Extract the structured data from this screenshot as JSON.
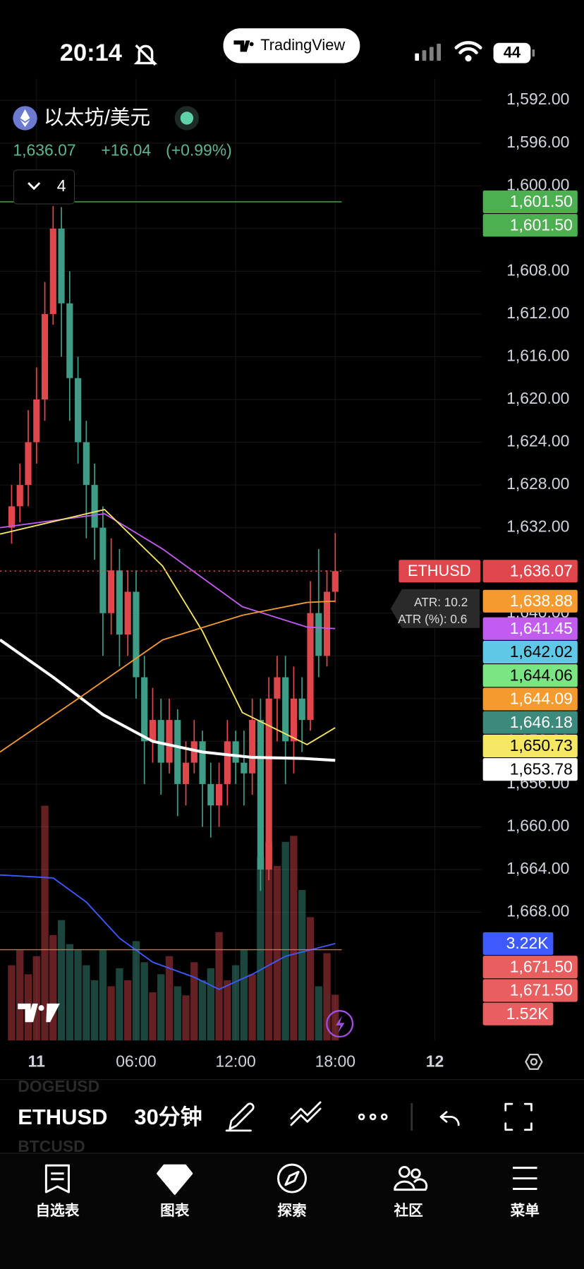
{
  "status": {
    "time": "20:14",
    "battery": "44",
    "app": "TradingView"
  },
  "header": {
    "symbol": "以太坊/美元",
    "price": "1,636.07",
    "change": "+16.04",
    "change_pct": "(+0.99%)",
    "indicators": "4"
  },
  "chart_data": {
    "type": "candlestick",
    "x": [
      -1.5,
      -1,
      -0.5,
      0,
      0.5,
      1,
      1.5,
      2,
      2.5,
      3,
      3.5,
      4,
      4.5,
      5,
      5.5,
      6,
      6.5,
      7,
      7.5,
      8,
      8.5,
      9,
      9.5,
      10,
      10.5,
      11,
      11.5,
      12,
      12.5,
      13,
      13.5,
      14,
      14.5,
      15,
      15.5,
      16,
      16.5,
      17,
      17.5,
      18
    ],
    "open": [
      1632,
      1630,
      1628,
      1624,
      1620,
      1612,
      1604,
      1611,
      1618,
      1624,
      1628,
      1632,
      1640,
      1636,
      1642,
      1638,
      1646,
      1652,
      1650,
      1654,
      1650,
      1656,
      1654,
      1652,
      1656,
      1658,
      1656,
      1652,
      1654,
      1655,
      1650,
      1664,
      1648,
      1646,
      1652,
      1648,
      1650,
      1640,
      1644,
      1638
    ],
    "high": [
      1633.5,
      1631.5,
      1630,
      1626,
      1622,
      1613,
      1616,
      1622,
      1626,
      1633,
      1635,
      1644,
      1642,
      1645,
      1644,
      1648,
      1656,
      1654,
      1657,
      1655,
      1659,
      1658,
      1655,
      1660,
      1661,
      1660,
      1658,
      1656,
      1658,
      1657,
      1666,
      1665,
      1652,
      1656,
      1655,
      1653,
      1651,
      1646,
      1645,
      1639
    ],
    "low": [
      1628,
      1626,
      1621,
      1617,
      1609,
      1601.9,
      1602,
      1608,
      1616,
      1622,
      1626,
      1630,
      1633,
      1634,
      1636,
      1636,
      1644,
      1647,
      1648,
      1648,
      1649,
      1652,
      1650,
      1651,
      1654,
      1654,
      1650,
      1651,
      1651,
      1648,
      1648,
      1646,
      1644,
      1644,
      1645,
      1646,
      1637,
      1634,
      1636,
      1632.5
    ],
    "close": [
      1630,
      1628,
      1624,
      1620,
      1612,
      1604,
      1611,
      1618,
      1624,
      1628,
      1632,
      1640,
      1636,
      1642,
      1638,
      1646,
      1652,
      1650,
      1654,
      1650,
      1656,
      1654,
      1652,
      1656,
      1658,
      1656,
      1652,
      1654,
      1655,
      1650,
      1664,
      1648,
      1646,
      1652,
      1648,
      1650,
      1640,
      1644,
      1638,
      1636.07
    ],
    "up_color": "#3f9c87",
    "down_color": "#e0474d",
    "xlim": [
      -2.2,
      26.8
    ],
    "xticks": [
      {
        "value": 0,
        "label": "11"
      },
      {
        "value": 6,
        "label": "06:00"
      },
      {
        "value": 12,
        "label": "12:00"
      },
      {
        "value": 18,
        "label": "18:00"
      },
      {
        "value": 24,
        "label": "12"
      }
    ],
    "ylim": [
      1590,
      1680
    ],
    "y_inverted": true,
    "yticks": [
      {
        "value": 1592,
        "label": "1,592.00"
      },
      {
        "value": 1596,
        "label": "1,596.00"
      },
      {
        "value": 1600,
        "label": "1,600.00"
      },
      {
        "value": 1604,
        "label": "1,604.00"
      },
      {
        "value": 1608,
        "label": "1,608.00"
      },
      {
        "value": 1612,
        "label": "1,612.00"
      },
      {
        "value": 1616,
        "label": "1,616.00"
      },
      {
        "value": 1620,
        "label": "1,620.00"
      },
      {
        "value": 1624,
        "label": "1,624.00"
      },
      {
        "value": 1628,
        "label": "1,628.00"
      },
      {
        "value": 1632,
        "label": "1,632.00"
      },
      {
        "value": 1636,
        "label": "1,636.00"
      },
      {
        "value": 1640,
        "label": "1,640.00"
      },
      {
        "value": 1644,
        "label": "1,644.00"
      },
      {
        "value": 1648,
        "label": "1,648.00"
      },
      {
        "value": 1652,
        "label": "1,652.00"
      },
      {
        "value": 1656,
        "label": "1,656.00"
      },
      {
        "value": 1660,
        "label": "1,660.00"
      },
      {
        "value": 1664,
        "label": "1,664.00"
      },
      {
        "value": 1668,
        "label": "1,668.00"
      }
    ],
    "grid": true,
    "volume": {
      "values": [
        2.5,
        3,
        2.2,
        2.8,
        7.8,
        3.5,
        4,
        3.2,
        3,
        2.5,
        2,
        3,
        1.8,
        2.4,
        2,
        3.3,
        2.6,
        1.6,
        2.2,
        2.8,
        1.8,
        1.5,
        2.6,
        2,
        2.4,
        3.6,
        2,
        2.5,
        3,
        2.2,
        6.1,
        6.6,
        5.8,
        6.6,
        6.8,
        5,
        4.1,
        1.8,
        2.9,
        1.52
      ],
      "vlim": [
        0,
        7.8
      ],
      "ma": {
        "color": "#3d5afe",
        "x": [
          -2.2,
          1,
          3,
          5,
          7,
          9.5,
          11,
          13,
          15,
          18
        ],
        "values": [
          5.5,
          5.4,
          4.6,
          3.4,
          2.6,
          2.1,
          1.7,
          2.2,
          2.8,
          3.22
        ]
      }
    },
    "overlays": [
      {
        "color": "#ffffff",
        "width": 3.5,
        "x": [
          -2.2,
          1,
          4,
          7,
          10,
          13,
          16,
          18
        ],
        "values": [
          1642.5,
          1646,
          1649.5,
          1652,
          1653,
          1653.5,
          1653.6,
          1653.78
        ]
      },
      {
        "color": "#c25cf0",
        "width": 1.6,
        "x": [
          -2.2,
          4.1,
          7.6,
          12.4,
          16.3,
          18
        ],
        "values": [
          1632,
          1630.7,
          1634,
          1639.4,
          1641.3,
          1641.45
        ]
      },
      {
        "color": "#f5e663",
        "width": 1.6,
        "x": [
          -2.2,
          4.1,
          7.6,
          10,
          12.4,
          16.3,
          18
        ],
        "values": [
          1632.6,
          1630.3,
          1635.6,
          1641.7,
          1649.3,
          1652.3,
          1650.73
        ]
      },
      {
        "color": "#f59a2f",
        "width": 1.6,
        "x": [
          -2.2,
          2.7,
          7.6,
          12.4,
          16.3,
          18
        ],
        "values": [
          1653,
          1647.8,
          1642.5,
          1640.2,
          1639,
          1638.88
        ]
      }
    ],
    "atr": {
      "line1": "ATR: 10.2",
      "line2": "ATR (%): 0.6"
    },
    "price_tags": [
      {
        "value": 1601.5,
        "label": "1,601.50",
        "color": "#4caf50",
        "line": "solid"
      },
      {
        "value": 1601.5,
        "label": "1,601.50",
        "color": "#4caf50"
      },
      {
        "value": 1636.07,
        "label": "1,636.07",
        "color": "#e0474d",
        "name": "ETHUSD",
        "line": "dotted"
      },
      {
        "value": 1638.88,
        "label": "1,638.88",
        "color": "#f59a2f"
      },
      {
        "value": 1641.45,
        "label": "1,641.45",
        "color": "#c25cf0"
      },
      {
        "value": 1642.02,
        "label": "1,642.02",
        "color": "#5ec8e6"
      },
      {
        "value": 1644.06,
        "label": "1,644.06",
        "color": "#7ae582"
      },
      {
        "value": 1644.09,
        "label": "1,644.09",
        "color": "#f59a2f"
      },
      {
        "value": 1646.18,
        "label": "1,646.18",
        "color": "#3c8a7c"
      },
      {
        "value": 1650.73,
        "label": "1,650.73",
        "color": "#f5e663"
      },
      {
        "value": 1653.78,
        "label": "1,653.78",
        "color": "#ffffff"
      },
      {
        "value": 3.22,
        "label": "3.22K",
        "color": "#3d5afe",
        "scale": "volume"
      },
      {
        "value": 1671.5,
        "label": "1,671.50",
        "color": "#e95f5f",
        "line": "solid"
      },
      {
        "value": 1671.5,
        "label": "1,671.50",
        "color": "#e95f5f"
      },
      {
        "value": 1.52,
        "label": "1.52K",
        "color": "#e95f5f",
        "scale": "volume"
      }
    ]
  },
  "toolbar": {
    "symbol": "ETHUSD",
    "interval": "30分钟",
    "recent_1": "DOGEUSD",
    "recent_2": "BTCUSD"
  },
  "tabs": [
    "自选表",
    "图表",
    "探索",
    "社区",
    "菜单"
  ]
}
